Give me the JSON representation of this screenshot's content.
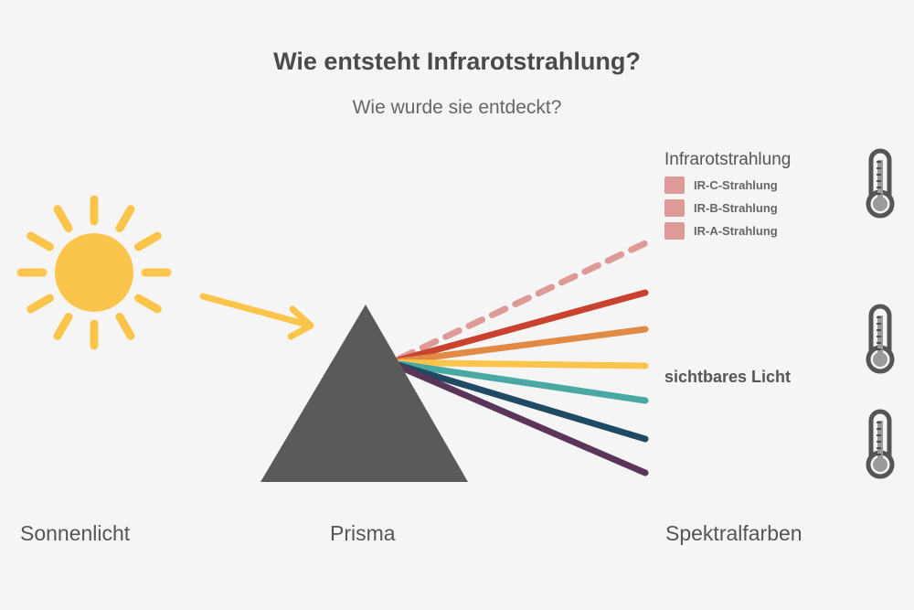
{
  "title": "Wie entsteht Infrarotstrahlung?",
  "subtitle": "Wie wurde sie entdeckt?",
  "labels": {
    "sun": "Sonnenlicht",
    "prism": "Prisma",
    "spectrum": "Spektralfarben"
  },
  "infrared": {
    "heading": "Infrarotstrahlung",
    "legend": [
      "IR-C-Strahlung",
      "IR-B-Strahlung",
      "IR-A-Strahlung"
    ],
    "color": "#dd9a96"
  },
  "visible_light_label": "sichtbares Licht",
  "colors": {
    "sun": "#fbc54c",
    "prism": "#5a5a5a",
    "spectrum": [
      "#dd9a96",
      "#c9412f",
      "#e08a45",
      "#fbc54c",
      "#4aa8a4",
      "#1f4a63",
      "#5b3459"
    ],
    "thermometer": "#555555"
  },
  "icons": [
    "sun-icon",
    "arrow-icon",
    "prism-icon",
    "thermometer-icon"
  ]
}
